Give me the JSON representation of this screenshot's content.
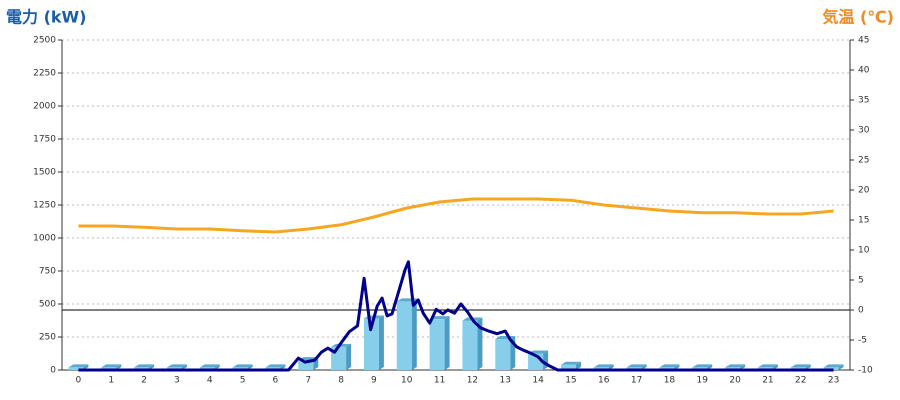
{
  "chart_data": {
    "type": "combo",
    "y_title": "電力 (kW)",
    "y2_title": "気温 (℃)",
    "categories": [
      "0",
      "1",
      "2",
      "3",
      "4",
      "5",
      "6",
      "7",
      "8",
      "9",
      "10",
      "11",
      "12",
      "13",
      "14",
      "15",
      "16",
      "17",
      "18",
      "19",
      "20",
      "21",
      "22",
      "23"
    ],
    "ylim": [
      0,
      2500
    ],
    "yticks": [
      0,
      250,
      500,
      750,
      1000,
      1250,
      1500,
      1750,
      2000,
      2250,
      2500
    ],
    "y2lim": [
      -10,
      45
    ],
    "y2ticks": [
      -10,
      -5,
      0,
      5,
      10,
      15,
      20,
      25,
      30,
      35,
      40,
      45
    ],
    "grid": true,
    "series": [
      {
        "type": "bar",
        "color": "#87ceeb",
        "values": [
          20,
          20,
          20,
          20,
          20,
          20,
          20,
          75,
          175,
          390,
          520,
          385,
          375,
          235,
          125,
          40,
          20,
          20,
          20,
          20,
          20,
          20,
          20,
          20
        ]
      },
      {
        "type": "line",
        "color": "#f5a623",
        "axis": "y2",
        "values": [
          14,
          14,
          13.8,
          13.5,
          13.5,
          13.2,
          13,
          13.5,
          14.2,
          15.5,
          17,
          18,
          18.5,
          18.5,
          18.5,
          18.3,
          17.5,
          17,
          16.5,
          16.2,
          16.2,
          16,
          16,
          16.5
        ]
      },
      {
        "type": "line",
        "color": "#00008b",
        "x": [
          0,
          6.4,
          6.7,
          6.9,
          7.2,
          7.4,
          7.6,
          7.8,
          8.0,
          8.25,
          8.5,
          8.7,
          8.9,
          9.1,
          9.25,
          9.4,
          9.55,
          9.75,
          9.95,
          10.05,
          10.2,
          10.35,
          10.5,
          10.7,
          10.9,
          11.1,
          11.25,
          11.45,
          11.65,
          11.85,
          12.05,
          12.25,
          12.5,
          12.75,
          13.0,
          13.15,
          13.35,
          13.55,
          13.75,
          14.0,
          14.15,
          14.35,
          14.6,
          23
        ],
        "values": [
          0,
          0,
          90,
          60,
          75,
          135,
          165,
          135,
          205,
          290,
          335,
          695,
          305,
          485,
          545,
          410,
          425,
          590,
          760,
          820,
          490,
          530,
          430,
          355,
          460,
          425,
          455,
          430,
          500,
          440,
          365,
          320,
          295,
          275,
          295,
          230,
          175,
          150,
          130,
          100,
          60,
          30,
          0,
          0
        ]
      }
    ]
  }
}
